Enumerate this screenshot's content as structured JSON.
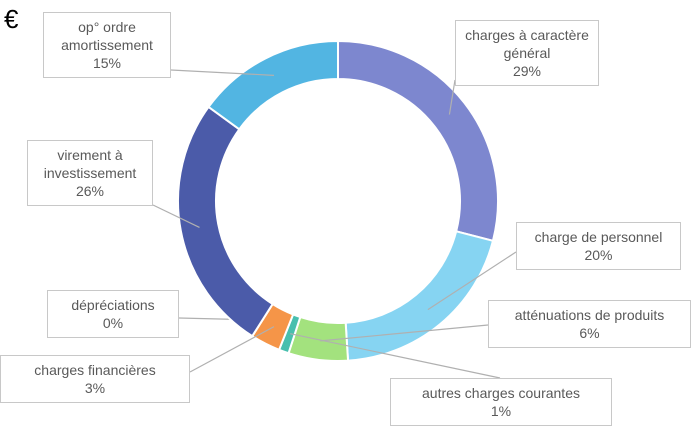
{
  "chart_data": {
    "type": "donut",
    "title": "€",
    "categories": [
      "charges à caractère général",
      "charge de personnel",
      "atténuations de produits",
      "autres charges courantes",
      "charges financières",
      "dépréciations",
      "virement à investissement",
      "op° ordre amortissement"
    ],
    "values": [
      29,
      20,
      6,
      1,
      3,
      0,
      26,
      15
    ],
    "value_labels": [
      "29%",
      "20%",
      "6%",
      "1%",
      "3%",
      "0%",
      "26%",
      "15%"
    ],
    "colors": [
      "#7d87cf",
      "#86d4f2",
      "#a3e27e",
      "#48bfae",
      "#f59548",
      "#9a9a9a",
      "#4b5ba9",
      "#52b5e2"
    ]
  }
}
